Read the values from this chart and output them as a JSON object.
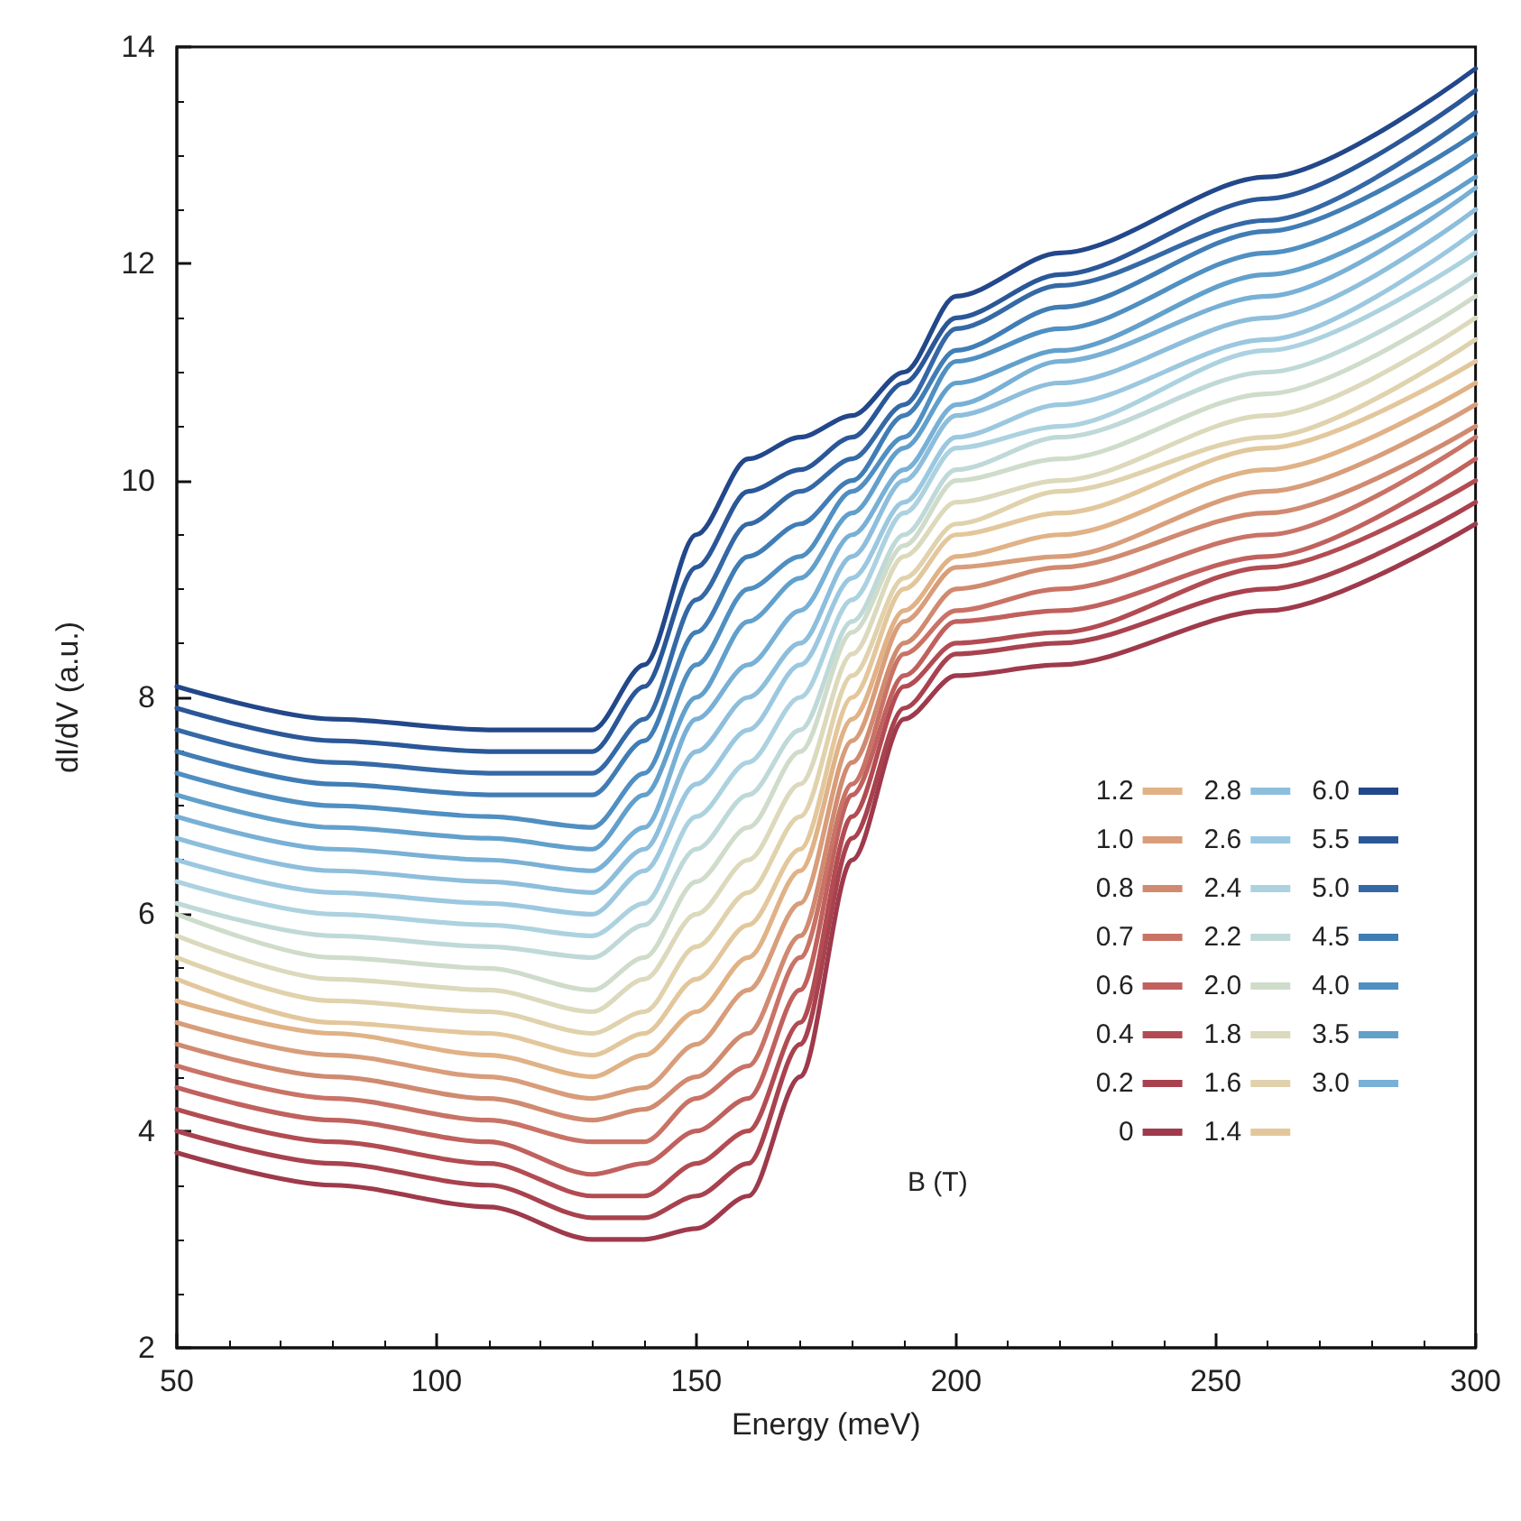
{
  "chart_data": {
    "type": "line",
    "xlabel": "Energy (meV)",
    "ylabel": "dI/dV (a.u.)",
    "legend_title": "B (T)",
    "x": [
      50,
      80,
      110,
      130,
      140,
      150,
      160,
      170,
      180,
      190,
      200,
      220,
      260,
      300
    ],
    "xlim": [
      50,
      300
    ],
    "xticks": [
      50,
      100,
      150,
      200,
      250,
      300
    ],
    "ylim": [
      2,
      14
    ],
    "yticks": [
      2,
      4,
      6,
      8,
      10,
      12,
      14
    ],
    "grid": false,
    "legend": "bottom right",
    "marker": "none",
    "line_style": "solid",
    "series": [
      {
        "name": "0",
        "color": "#9e3a4b",
        "values": [
          3.8,
          3.5,
          3.3,
          3.0,
          3.0,
          3.1,
          3.4,
          4.5,
          6.5,
          7.8,
          8.2,
          8.3,
          8.8,
          9.6
        ]
      },
      {
        "name": "0.2",
        "color": "#a8424e",
        "values": [
          4.0,
          3.7,
          3.5,
          3.2,
          3.2,
          3.4,
          3.7,
          4.8,
          6.7,
          7.9,
          8.4,
          8.5,
          9.0,
          9.8
        ]
      },
      {
        "name": "0.4",
        "color": "#b24c52",
        "values": [
          4.2,
          3.9,
          3.7,
          3.4,
          3.4,
          3.7,
          4.0,
          5.0,
          6.9,
          8.1,
          8.5,
          8.6,
          9.2,
          10.0
        ]
      },
      {
        "name": "0.6",
        "color": "#c0615e",
        "values": [
          4.4,
          4.1,
          3.9,
          3.6,
          3.7,
          4.0,
          4.3,
          5.3,
          7.1,
          8.2,
          8.7,
          8.8,
          9.3,
          10.2
        ]
      },
      {
        "name": "0.7",
        "color": "#c97366",
        "values": [
          4.6,
          4.3,
          4.1,
          3.9,
          3.9,
          4.3,
          4.6,
          5.6,
          7.2,
          8.4,
          8.8,
          9.0,
          9.5,
          10.4
        ]
      },
      {
        "name": "0.8",
        "color": "#d08a70",
        "values": [
          4.8,
          4.5,
          4.3,
          4.1,
          4.2,
          4.5,
          4.9,
          5.8,
          7.4,
          8.5,
          9.0,
          9.2,
          9.7,
          10.5
        ]
      },
      {
        "name": "1.0",
        "color": "#d89d7a",
        "values": [
          5.0,
          4.7,
          4.5,
          4.3,
          4.4,
          4.8,
          5.3,
          6.1,
          7.6,
          8.7,
          9.2,
          9.3,
          9.9,
          10.7
        ]
      },
      {
        "name": "1.2",
        "color": "#e0b286",
        "values": [
          5.2,
          4.9,
          4.7,
          4.5,
          4.7,
          5.1,
          5.6,
          6.4,
          7.8,
          8.8,
          9.3,
          9.5,
          10.1,
          10.9
        ]
      },
      {
        "name": "1.4",
        "color": "#e3c79c",
        "values": [
          5.4,
          5.0,
          4.9,
          4.7,
          4.9,
          5.4,
          5.9,
          6.6,
          8.0,
          9.0,
          9.5,
          9.7,
          10.3,
          11.1
        ]
      },
      {
        "name": "1.6",
        "color": "#e0d2ac",
        "values": [
          5.6,
          5.2,
          5.1,
          4.9,
          5.1,
          5.7,
          6.2,
          6.9,
          8.2,
          9.1,
          9.6,
          9.9,
          10.4,
          11.3
        ]
      },
      {
        "name": "1.8",
        "color": "#dcd9bc",
        "values": [
          5.8,
          5.4,
          5.3,
          5.1,
          5.4,
          6.0,
          6.5,
          7.2,
          8.4,
          9.3,
          9.8,
          10.0,
          10.6,
          11.5
        ]
      },
      {
        "name": "2.0",
        "color": "#cfdcca",
        "values": [
          6.0,
          5.6,
          5.5,
          5.3,
          5.6,
          6.3,
          6.8,
          7.5,
          8.6,
          9.4,
          10.0,
          10.2,
          10.8,
          11.7
        ]
      },
      {
        "name": "2.2",
        "color": "#bfd9d8",
        "values": [
          6.1,
          5.8,
          5.7,
          5.6,
          5.9,
          6.6,
          7.1,
          7.7,
          8.7,
          9.5,
          10.1,
          10.4,
          11.0,
          11.9
        ]
      },
      {
        "name": "2.4",
        "color": "#acd2e0",
        "values": [
          6.3,
          6.0,
          5.9,
          5.8,
          6.1,
          6.9,
          7.4,
          8.0,
          8.9,
          9.7,
          10.3,
          10.5,
          11.2,
          12.1
        ]
      },
      {
        "name": "2.6",
        "color": "#9bc8e0",
        "values": [
          6.5,
          6.2,
          6.1,
          6.0,
          6.4,
          7.2,
          7.7,
          8.3,
          9.1,
          9.8,
          10.4,
          10.7,
          11.3,
          12.3
        ]
      },
      {
        "name": "2.8",
        "color": "#8dbedc",
        "values": [
          6.7,
          6.4,
          6.3,
          6.2,
          6.6,
          7.5,
          8.0,
          8.5,
          9.3,
          10.0,
          10.6,
          10.9,
          11.5,
          12.5
        ]
      },
      {
        "name": "3.0",
        "color": "#78b0d6",
        "values": [
          6.9,
          6.6,
          6.5,
          6.4,
          6.8,
          7.8,
          8.3,
          8.8,
          9.5,
          10.1,
          10.7,
          11.1,
          11.7,
          12.7
        ]
      },
      {
        "name": "3.5",
        "color": "#62a0cc",
        "values": [
          7.1,
          6.8,
          6.7,
          6.6,
          7.1,
          8.0,
          8.7,
          9.1,
          9.7,
          10.3,
          10.9,
          11.2,
          11.9,
          12.8
        ]
      },
      {
        "name": "4.0",
        "color": "#4f8fc2",
        "values": [
          7.3,
          7.0,
          6.9,
          6.8,
          7.3,
          8.3,
          9.0,
          9.3,
          9.9,
          10.4,
          11.1,
          11.4,
          12.1,
          13.0
        ]
      },
      {
        "name": "4.5",
        "color": "#407db5",
        "values": [
          7.5,
          7.2,
          7.1,
          7.1,
          7.6,
          8.6,
          9.3,
          9.6,
          10.0,
          10.6,
          11.2,
          11.6,
          12.3,
          13.2
        ]
      },
      {
        "name": "5.0",
        "color": "#3569a6",
        "values": [
          7.7,
          7.4,
          7.3,
          7.3,
          7.8,
          8.9,
          9.6,
          9.9,
          10.2,
          10.7,
          11.4,
          11.8,
          12.4,
          13.4
        ]
      },
      {
        "name": "5.5",
        "color": "#2a5798",
        "values": [
          7.9,
          7.6,
          7.5,
          7.5,
          8.1,
          9.2,
          9.9,
          10.1,
          10.4,
          10.9,
          11.5,
          11.9,
          12.6,
          13.6
        ]
      },
      {
        "name": "6.0",
        "color": "#22478a",
        "values": [
          8.1,
          7.8,
          7.7,
          7.7,
          8.3,
          9.5,
          10.2,
          10.4,
          10.6,
          11.0,
          11.7,
          12.1,
          12.8,
          13.8
        ]
      }
    ]
  }
}
